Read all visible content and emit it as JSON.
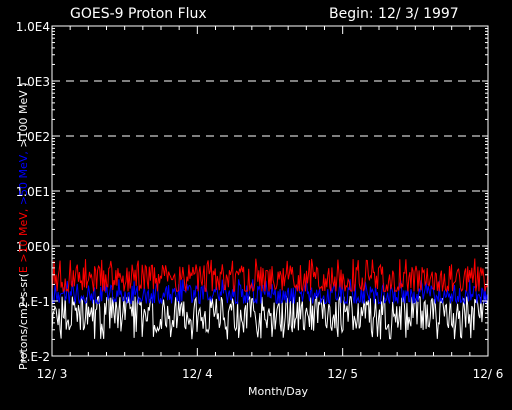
{
  "chart_data": {
    "type": "line",
    "title": "GOES-9 Proton Flux",
    "subtitle": "Begin: 12/ 3/ 1997",
    "xlabel": "Month/Day",
    "ylabel_parts": [
      {
        "text": "Protons/cm2-s-sr(",
        "color": "#ffffff"
      },
      {
        "text": "E >10 MeV, ",
        "color": "#ff0000"
      },
      {
        "text": ">50 MeV, ",
        "color": "#0000ff"
      },
      {
        "text": ">100 MeV )",
        "color": "#ffffff"
      }
    ],
    "y_scale": "log",
    "ylim": [
      0.01,
      10000
    ],
    "y_ticks": [
      {
        "value": 0.01,
        "label": "1.E-2"
      },
      {
        "value": 0.1,
        "label": "1.E-1"
      },
      {
        "value": 1,
        "label": "1.0E0"
      },
      {
        "value": 10,
        "label": "1.0E1"
      },
      {
        "value": 100,
        "label": "1.0E2"
      },
      {
        "value": 1000,
        "label": "1.0E3"
      },
      {
        "value": 10000,
        "label": "1.0E4"
      }
    ],
    "gridlines_at": [
      1,
      10,
      100,
      1000
    ],
    "x_range_days": [
      0,
      3
    ],
    "x_ticks": [
      {
        "value": 0,
        "label": "12/ 3"
      },
      {
        "value": 1,
        "label": "12/ 4"
      },
      {
        "value": 2,
        "label": "12/ 5"
      },
      {
        "value": 3,
        "label": "12/ 6"
      }
    ],
    "series": [
      {
        "name": ">10 MeV",
        "color": "#ff0000",
        "typical": 0.25,
        "range": [
          0.15,
          0.6
        ]
      },
      {
        "name": ">50 MeV",
        "color": "#0000ff",
        "typical": 0.13,
        "range": [
          0.09,
          0.25
        ]
      },
      {
        "name": ">100 MeV",
        "color": "#ffffff",
        "typical": 0.06,
        "range": [
          0.02,
          0.12
        ]
      }
    ]
  }
}
